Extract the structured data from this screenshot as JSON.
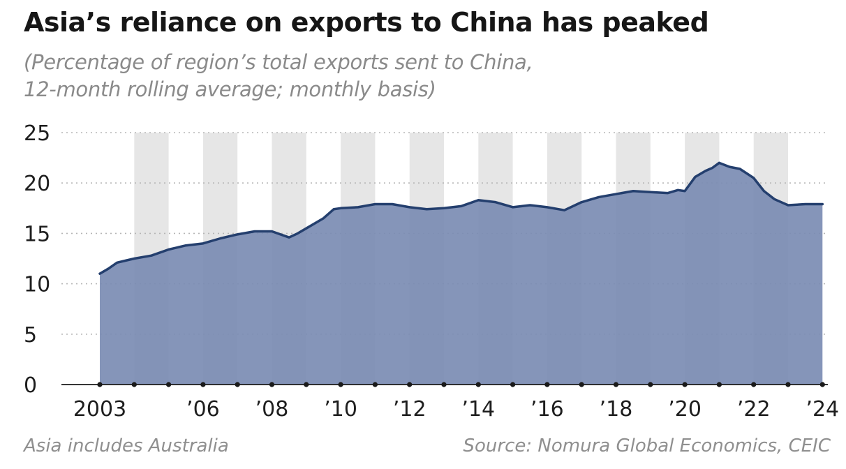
{
  "title": "Asia’s reliance on exports to China has peaked",
  "subtitle": {
    "line1": "(Percentage of region’s total exports sent to China,",
    "line2": "12-month rolling average; monthly basis)"
  },
  "footer": {
    "note": "Asia includes Australia",
    "source": "Source: Nomura Global Economics, CEIC"
  },
  "chart_data": {
    "type": "area",
    "title": "Asia’s reliance on exports to China has peaked",
    "xlabel": "",
    "ylabel": "",
    "ylim": [
      0,
      25
    ],
    "xlim": [
      2003,
      2024.2
    ],
    "yticks": [
      0,
      5,
      10,
      15,
      20,
      25
    ],
    "ytick_labels": [
      "0",
      "5",
      "10",
      "15",
      "20",
      "25"
    ],
    "xticks": [
      2003,
      2006,
      2008,
      2010,
      2012,
      2014,
      2016,
      2018,
      2020,
      2022,
      2024
    ],
    "xtick_labels": [
      "2003",
      "’06",
      "’08",
      "’10",
      "’12",
      "’14",
      "’16",
      "’18",
      "’20",
      "’22",
      "’24"
    ],
    "grid": true,
    "shaded_bands": "alternating years",
    "colors": {
      "fill": "#7b8cb3",
      "line": "#243f6e",
      "band": "#e6e6e6",
      "grid": "#b5b5b5",
      "axis": "#1a1a1a"
    },
    "series": [
      {
        "x": [
          2003.0,
          2003.25,
          2003.5,
          2003.75,
          2004.0,
          2004.5,
          2005.0,
          2005.5,
          2006.0,
          2006.5,
          2007.0,
          2007.5,
          2008.0,
          2008.5,
          2008.75,
          2009.0,
          2009.5,
          2009.8,
          2010.0,
          2010.5,
          2011.0,
          2011.5,
          2012.0,
          2012.5,
          2013.0,
          2013.5,
          2014.0,
          2014.5,
          2015.0,
          2015.5,
          2016.0,
          2016.5,
          2017.0,
          2017.5,
          2018.0,
          2018.5,
          2019.0,
          2019.5,
          2019.8,
          2020.0,
          2020.3,
          2020.6,
          2020.8,
          2021.0,
          2021.3,
          2021.6,
          2022.0,
          2022.3,
          2022.6,
          2023.0,
          2023.5,
          2024.0
        ],
        "y": [
          11.0,
          11.5,
          12.1,
          12.3,
          12.5,
          12.8,
          13.4,
          13.8,
          14.0,
          14.5,
          14.9,
          15.2,
          15.2,
          14.6,
          15.0,
          15.5,
          16.5,
          17.4,
          17.5,
          17.6,
          17.9,
          17.9,
          17.6,
          17.4,
          17.5,
          17.7,
          18.3,
          18.1,
          17.6,
          17.8,
          17.6,
          17.3,
          18.1,
          18.6,
          18.9,
          19.2,
          19.1,
          19.0,
          19.3,
          19.2,
          20.6,
          21.2,
          21.5,
          22.0,
          21.6,
          21.4,
          20.5,
          19.2,
          18.4,
          17.8,
          17.9,
          17.9
        ]
      }
    ]
  }
}
